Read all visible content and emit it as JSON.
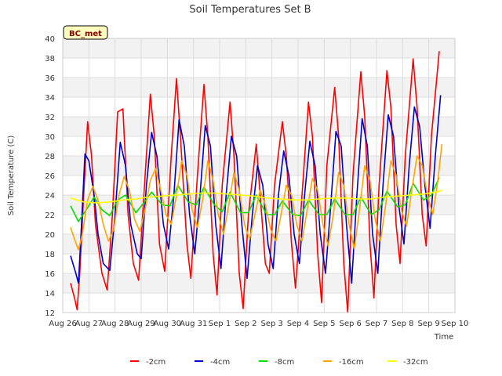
{
  "chart_data": {
    "type": "line",
    "title": "Soil Temperatures Set B",
    "xlabel": "Time",
    "ylabel": "Soil Temperature (C)",
    "badge": "BC_met",
    "ylim": [
      12,
      40
    ],
    "yticks": [
      12,
      14,
      16,
      18,
      20,
      22,
      24,
      26,
      28,
      30,
      32,
      34,
      36,
      38,
      40
    ],
    "xlim": [
      0,
      15
    ],
    "xticks": [
      "Aug 26",
      "Aug 27",
      "Aug 28",
      "Aug 29",
      "Aug 30",
      "Aug 31",
      "Sep 1",
      "Sep 2",
      "Sep 3",
      "Sep 4",
      "Sep 5",
      "Sep 6",
      "Sep 7",
      "Sep 8",
      "Sep 9",
      "Sep 10"
    ],
    "grid": true,
    "legend_position": "bottom",
    "series": [
      {
        "name": "-2cm",
        "color": "#ff0000",
        "x": [
          0.3,
          0.45,
          0.55,
          0.65,
          0.8,
          0.95,
          1.1,
          1.25,
          1.5,
          1.7,
          1.9,
          2.1,
          2.3,
          2.5,
          2.7,
          2.9,
          3.15,
          3.35,
          3.5,
          3.7,
          3.9,
          4.15,
          4.35,
          4.5,
          4.75,
          4.9,
          5.15,
          5.4,
          5.55,
          5.75,
          5.9,
          6.1,
          6.4,
          6.55,
          6.75,
          6.9,
          7.1,
          7.4,
          7.55,
          7.75,
          7.9,
          8.1,
          8.4,
          8.55,
          8.75,
          8.9,
          9.1,
          9.4,
          9.55,
          9.75,
          9.9,
          10.1,
          10.4,
          10.55,
          10.75,
          10.9,
          11.1,
          11.4,
          11.55,
          11.75,
          11.9,
          12.1,
          12.4,
          12.55,
          12.75,
          12.9,
          13.1,
          13.4,
          13.55,
          13.75,
          13.9,
          14.1,
          14.4
        ],
        "y": [
          15,
          13.5,
          12.3,
          16,
          24,
          31.5,
          28,
          21,
          16,
          14.3,
          22,
          32.5,
          32.8,
          22,
          17,
          15.3,
          26,
          34.3,
          30,
          19,
          16.2,
          28,
          35.9,
          30,
          19,
          15.5,
          26,
          35.3,
          30,
          18,
          13.8,
          25,
          33.5,
          28,
          16,
          12.4,
          22,
          29.2,
          24,
          17,
          16,
          25,
          31.5,
          28,
          19,
          14.5,
          22,
          33.5,
          30,
          18,
          13,
          27,
          35,
          30,
          17,
          12,
          26,
          36.6,
          32,
          19,
          13.5,
          25,
          36.7,
          33,
          21,
          17,
          28,
          37.9,
          33,
          22,
          18.8,
          30,
          38.7
        ]
      },
      {
        "name": "-4cm",
        "color": "#0000cc",
        "x": [
          0.3,
          0.5,
          0.6,
          0.7,
          0.85,
          1.0,
          1.2,
          1.35,
          1.55,
          1.8,
          2.0,
          2.2,
          2.4,
          2.6,
          2.85,
          3.0,
          3.2,
          3.4,
          3.6,
          3.85,
          4.05,
          4.25,
          4.45,
          4.65,
          4.85,
          5.05,
          5.25,
          5.45,
          5.65,
          5.85,
          6.05,
          6.25,
          6.45,
          6.65,
          6.85,
          7.05,
          7.25,
          7.45,
          7.65,
          7.85,
          8.05,
          8.25,
          8.45,
          8.65,
          8.85,
          9.05,
          9.25,
          9.45,
          9.65,
          9.85,
          10.05,
          10.25,
          10.45,
          10.65,
          10.85,
          11.05,
          11.25,
          11.45,
          11.65,
          11.85,
          12.05,
          12.25,
          12.45,
          12.65,
          12.85,
          13.05,
          13.25,
          13.45,
          13.65,
          13.85,
          14.05,
          14.25,
          14.45
        ],
        "y": [
          17.8,
          16,
          15,
          20,
          28.2,
          27.5,
          24,
          20,
          17,
          16.3,
          22,
          29.4,
          27,
          21,
          18,
          17.5,
          25,
          30.4,
          28,
          21,
          18.5,
          24,
          31.7,
          29,
          22,
          18,
          24,
          31.1,
          29,
          21,
          16.5,
          24,
          30,
          28,
          21,
          15.5,
          22,
          27,
          25,
          19,
          16.5,
          24,
          28.5,
          26,
          20,
          17,
          24,
          29.5,
          27,
          20,
          16,
          23,
          30.5,
          29,
          21,
          15,
          24,
          31.8,
          29,
          20,
          16,
          25,
          32.2,
          30,
          23,
          19,
          27,
          33,
          31,
          25,
          20.6,
          28,
          34.2
        ]
      },
      {
        "name": "-8cm",
        "color": "#00dd00",
        "x": [
          0.3,
          0.6,
          0.9,
          1.2,
          1.5,
          1.8,
          2.1,
          2.4,
          2.8,
          3.1,
          3.4,
          3.8,
          4.1,
          4.4,
          4.8,
          5.1,
          5.4,
          5.8,
          6.1,
          6.4,
          6.8,
          7.1,
          7.4,
          7.8,
          8.1,
          8.4,
          8.8,
          9.1,
          9.4,
          9.8,
          10.1,
          10.4,
          10.8,
          11.1,
          11.4,
          11.8,
          12.1,
          12.4,
          12.8,
          13.1,
          13.4,
          13.8,
          14.1,
          14.4
        ],
        "y": [
          22.9,
          21.3,
          22.5,
          23.8,
          22.5,
          21.9,
          23.5,
          24.0,
          22.2,
          23.2,
          24.3,
          23.0,
          22.9,
          25.0,
          23.3,
          23.0,
          24.8,
          23.0,
          22.3,
          24.3,
          22.2,
          22.2,
          24.0,
          22.0,
          22.0,
          23.4,
          22.0,
          21.9,
          23.5,
          22.0,
          22.0,
          23.6,
          22.0,
          22.0,
          23.8,
          22.0,
          22.5,
          24.4,
          22.8,
          23.0,
          25.2,
          23.5,
          24.0,
          25.8
        ]
      },
      {
        "name": "-16cm",
        "color": "#ffa500",
        "x": [
          0.3,
          0.45,
          0.6,
          0.75,
          0.95,
          1.15,
          1.35,
          1.55,
          1.75,
          1.95,
          2.15,
          2.35,
          2.55,
          2.75,
          2.95,
          3.15,
          3.35,
          3.55,
          3.75,
          3.95,
          4.15,
          4.35,
          4.55,
          4.75,
          4.95,
          5.15,
          5.35,
          5.55,
          5.75,
          5.95,
          6.15,
          6.35,
          6.55,
          6.75,
          6.95,
          7.15,
          7.35,
          7.55,
          7.75,
          7.95,
          8.15,
          8.35,
          8.55,
          8.75,
          8.95,
          9.15,
          9.35,
          9.55,
          9.75,
          9.95,
          10.15,
          10.35,
          10.55,
          10.75,
          10.95,
          11.15,
          11.35,
          11.55,
          11.75,
          11.95,
          12.15,
          12.35,
          12.55,
          12.75,
          12.95,
          13.15,
          13.35,
          13.55,
          13.75,
          13.95,
          14.15,
          14.35,
          14.5
        ],
        "y": [
          20.7,
          19.5,
          18.4,
          20.0,
          23.5,
          24.9,
          23.5,
          21.0,
          19.3,
          20.5,
          24.0,
          25.9,
          24.5,
          21.5,
          20.3,
          22.5,
          25.5,
          26.7,
          24.5,
          22.0,
          21.0,
          24.0,
          27.5,
          26.0,
          22.5,
          20.7,
          23.5,
          27.5,
          25.5,
          22.0,
          20.0,
          23.0,
          26.3,
          24.5,
          21.0,
          19.5,
          22.0,
          24.5,
          23.0,
          20.5,
          19.3,
          22.0,
          25.0,
          24.0,
          21.0,
          19.3,
          22.5,
          25.7,
          24.5,
          21.0,
          18.8,
          22.0,
          26.3,
          25.0,
          21.0,
          18.5,
          22.5,
          27.0,
          25.5,
          21.5,
          19.3,
          23.0,
          27.5,
          26.0,
          22.5,
          20.8,
          24.5,
          28.0,
          27.0,
          24.0,
          22.0,
          25.5,
          29.2
        ]
      },
      {
        "name": "-32cm",
        "color": "#ffff00",
        "x": [
          0.3,
          0.8,
          1.3,
          1.8,
          2.3,
          2.8,
          3.3,
          3.8,
          4.3,
          4.8,
          5.3,
          5.8,
          6.3,
          6.8,
          7.3,
          7.8,
          8.3,
          8.8,
          9.3,
          9.8,
          10.3,
          10.8,
          11.3,
          11.8,
          12.3,
          12.8,
          13.3,
          13.8,
          14.3,
          14.5
        ],
        "y": [
          23.7,
          23.3,
          23.2,
          23.3,
          23.5,
          23.6,
          23.8,
          23.9,
          24.0,
          24.1,
          24.2,
          24.2,
          24.1,
          24.0,
          23.9,
          23.7,
          23.6,
          23.5,
          23.5,
          23.6,
          23.7,
          23.7,
          23.6,
          23.6,
          23.8,
          23.9,
          24.0,
          24.1,
          24.3,
          24.5
        ]
      }
    ]
  }
}
